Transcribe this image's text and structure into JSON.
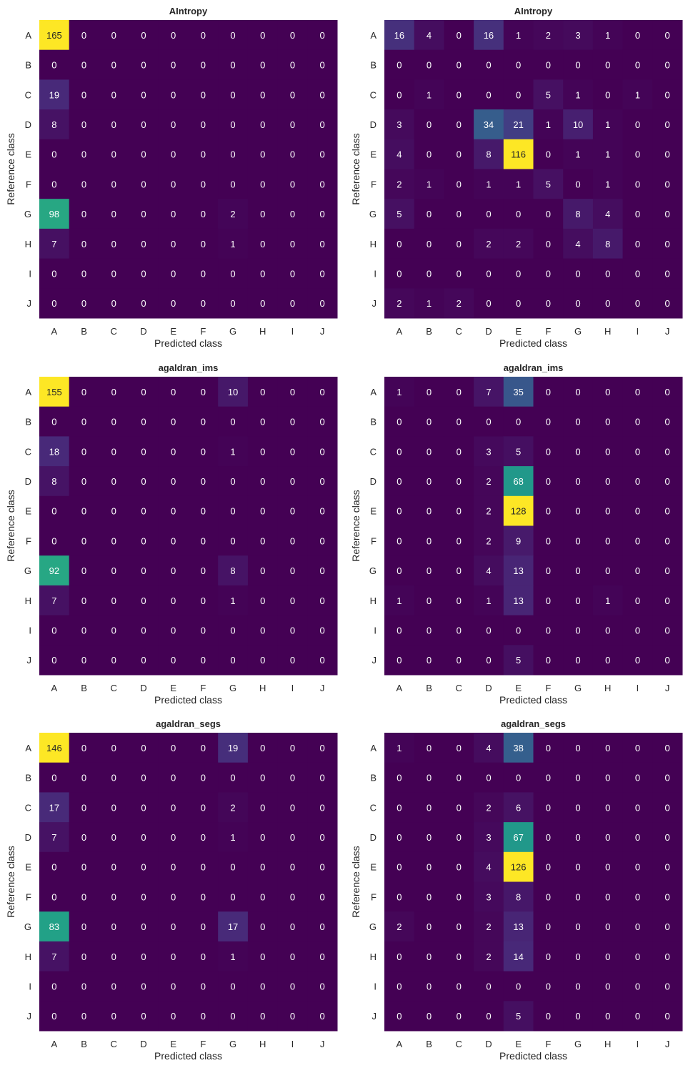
{
  "figure": {
    "classes": [
      "A",
      "B",
      "C",
      "D",
      "E",
      "F",
      "G",
      "H",
      "I",
      "J"
    ],
    "xlabel": "Predicted class",
    "ylabel": "Reference class",
    "colormap": [
      "#440154",
      "#482878",
      "#3e4989",
      "#31688e",
      "#26828e",
      "#1f9e89",
      "#35b779",
      "#6ece58",
      "#b5de2b",
      "#fde725"
    ]
  },
  "chart_data": [
    {
      "type": "heatmap",
      "title": "AIntropy",
      "rows": [
        "A",
        "B",
        "C",
        "D",
        "E",
        "F",
        "G",
        "H",
        "I",
        "J"
      ],
      "cols": [
        "A",
        "B",
        "C",
        "D",
        "E",
        "F",
        "G",
        "H",
        "I",
        "J"
      ],
      "xlabel": "Predicted class",
      "ylabel": "Reference class",
      "values": [
        [
          165,
          0,
          0,
          0,
          0,
          0,
          0,
          0,
          0,
          0
        ],
        [
          0,
          0,
          0,
          0,
          0,
          0,
          0,
          0,
          0,
          0
        ],
        [
          19,
          0,
          0,
          0,
          0,
          0,
          0,
          0,
          0,
          0
        ],
        [
          8,
          0,
          0,
          0,
          0,
          0,
          0,
          0,
          0,
          0
        ],
        [
          0,
          0,
          0,
          0,
          0,
          0,
          0,
          0,
          0,
          0
        ],
        [
          0,
          0,
          0,
          0,
          0,
          0,
          0,
          0,
          0,
          0
        ],
        [
          98,
          0,
          0,
          0,
          0,
          0,
          2,
          0,
          0,
          0
        ],
        [
          7,
          0,
          0,
          0,
          0,
          0,
          1,
          0,
          0,
          0
        ],
        [
          0,
          0,
          0,
          0,
          0,
          0,
          0,
          0,
          0,
          0
        ],
        [
          0,
          0,
          0,
          0,
          0,
          0,
          0,
          0,
          0,
          0
        ]
      ]
    },
    {
      "type": "heatmap",
      "title": "AIntropy",
      "rows": [
        "A",
        "B",
        "C",
        "D",
        "E",
        "F",
        "G",
        "H",
        "I",
        "J"
      ],
      "cols": [
        "A",
        "B",
        "C",
        "D",
        "E",
        "F",
        "G",
        "H",
        "I",
        "J"
      ],
      "xlabel": "Predicted class",
      "ylabel": "Reference class",
      "values": [
        [
          16,
          4,
          0,
          16,
          1,
          2,
          3,
          1,
          0,
          0
        ],
        [
          0,
          0,
          0,
          0,
          0,
          0,
          0,
          0,
          0,
          0
        ],
        [
          0,
          1,
          0,
          0,
          0,
          5,
          1,
          0,
          1,
          0
        ],
        [
          3,
          0,
          0,
          34,
          21,
          1,
          10,
          1,
          0,
          0
        ],
        [
          4,
          0,
          0,
          8,
          116,
          0,
          1,
          1,
          0,
          0
        ],
        [
          2,
          1,
          0,
          1,
          1,
          5,
          0,
          1,
          0,
          0
        ],
        [
          5,
          0,
          0,
          0,
          0,
          0,
          8,
          4,
          0,
          0
        ],
        [
          0,
          0,
          0,
          2,
          2,
          0,
          4,
          8,
          0,
          0
        ],
        [
          0,
          0,
          0,
          0,
          0,
          0,
          0,
          0,
          0,
          0
        ],
        [
          2,
          1,
          2,
          0,
          0,
          0,
          0,
          0,
          0,
          0
        ]
      ]
    },
    {
      "type": "heatmap",
      "title": "agaldran_ims",
      "rows": [
        "A",
        "B",
        "C",
        "D",
        "E",
        "F",
        "G",
        "H",
        "I",
        "J"
      ],
      "cols": [
        "A",
        "B",
        "C",
        "D",
        "E",
        "F",
        "G",
        "H",
        "I",
        "J"
      ],
      "xlabel": "Predicted class",
      "ylabel": "Reference class",
      "values": [
        [
          155,
          0,
          0,
          0,
          0,
          0,
          10,
          0,
          0,
          0
        ],
        [
          0,
          0,
          0,
          0,
          0,
          0,
          0,
          0,
          0,
          0
        ],
        [
          18,
          0,
          0,
          0,
          0,
          0,
          1,
          0,
          0,
          0
        ],
        [
          8,
          0,
          0,
          0,
          0,
          0,
          0,
          0,
          0,
          0
        ],
        [
          0,
          0,
          0,
          0,
          0,
          0,
          0,
          0,
          0,
          0
        ],
        [
          0,
          0,
          0,
          0,
          0,
          0,
          0,
          0,
          0,
          0
        ],
        [
          92,
          0,
          0,
          0,
          0,
          0,
          8,
          0,
          0,
          0
        ],
        [
          7,
          0,
          0,
          0,
          0,
          0,
          1,
          0,
          0,
          0
        ],
        [
          0,
          0,
          0,
          0,
          0,
          0,
          0,
          0,
          0,
          0
        ],
        [
          0,
          0,
          0,
          0,
          0,
          0,
          0,
          0,
          0,
          0
        ]
      ]
    },
    {
      "type": "heatmap",
      "title": "agaldran_ims",
      "rows": [
        "A",
        "B",
        "C",
        "D",
        "E",
        "F",
        "G",
        "H",
        "I",
        "J"
      ],
      "cols": [
        "A",
        "B",
        "C",
        "D",
        "E",
        "F",
        "G",
        "H",
        "I",
        "J"
      ],
      "xlabel": "Predicted class",
      "ylabel": "Reference class",
      "values": [
        [
          1,
          0,
          0,
          7,
          35,
          0,
          0,
          0,
          0,
          0
        ],
        [
          0,
          0,
          0,
          0,
          0,
          0,
          0,
          0,
          0,
          0
        ],
        [
          0,
          0,
          0,
          3,
          5,
          0,
          0,
          0,
          0,
          0
        ],
        [
          0,
          0,
          0,
          2,
          68,
          0,
          0,
          0,
          0,
          0
        ],
        [
          0,
          0,
          0,
          2,
          128,
          0,
          0,
          0,
          0,
          0
        ],
        [
          0,
          0,
          0,
          2,
          9,
          0,
          0,
          0,
          0,
          0
        ],
        [
          0,
          0,
          0,
          4,
          13,
          0,
          0,
          0,
          0,
          0
        ],
        [
          1,
          0,
          0,
          1,
          13,
          0,
          0,
          1,
          0,
          0
        ],
        [
          0,
          0,
          0,
          0,
          0,
          0,
          0,
          0,
          0,
          0
        ],
        [
          0,
          0,
          0,
          0,
          5,
          0,
          0,
          0,
          0,
          0
        ]
      ]
    },
    {
      "type": "heatmap",
      "title": "agaldran_segs",
      "rows": [
        "A",
        "B",
        "C",
        "D",
        "E",
        "F",
        "G",
        "H",
        "I",
        "J"
      ],
      "cols": [
        "A",
        "B",
        "C",
        "D",
        "E",
        "F",
        "G",
        "H",
        "I",
        "J"
      ],
      "xlabel": "Predicted class",
      "ylabel": "Reference class",
      "values": [
        [
          146,
          0,
          0,
          0,
          0,
          0,
          19,
          0,
          0,
          0
        ],
        [
          0,
          0,
          0,
          0,
          0,
          0,
          0,
          0,
          0,
          0
        ],
        [
          17,
          0,
          0,
          0,
          0,
          0,
          2,
          0,
          0,
          0
        ],
        [
          7,
          0,
          0,
          0,
          0,
          0,
          1,
          0,
          0,
          0
        ],
        [
          0,
          0,
          0,
          0,
          0,
          0,
          0,
          0,
          0,
          0
        ],
        [
          0,
          0,
          0,
          0,
          0,
          0,
          0,
          0,
          0,
          0
        ],
        [
          83,
          0,
          0,
          0,
          0,
          0,
          17,
          0,
          0,
          0
        ],
        [
          7,
          0,
          0,
          0,
          0,
          0,
          1,
          0,
          0,
          0
        ],
        [
          0,
          0,
          0,
          0,
          0,
          0,
          0,
          0,
          0,
          0
        ],
        [
          0,
          0,
          0,
          0,
          0,
          0,
          0,
          0,
          0,
          0
        ]
      ]
    },
    {
      "type": "heatmap",
      "title": "agaldran_segs",
      "rows": [
        "A",
        "B",
        "C",
        "D",
        "E",
        "F",
        "G",
        "H",
        "I",
        "J"
      ],
      "cols": [
        "A",
        "B",
        "C",
        "D",
        "E",
        "F",
        "G",
        "H",
        "I",
        "J"
      ],
      "xlabel": "Predicted class",
      "ylabel": "Reference class",
      "values": [
        [
          1,
          0,
          0,
          4,
          38,
          0,
          0,
          0,
          0,
          0
        ],
        [
          0,
          0,
          0,
          0,
          0,
          0,
          0,
          0,
          0,
          0
        ],
        [
          0,
          0,
          0,
          2,
          6,
          0,
          0,
          0,
          0,
          0
        ],
        [
          0,
          0,
          0,
          3,
          67,
          0,
          0,
          0,
          0,
          0
        ],
        [
          0,
          0,
          0,
          4,
          126,
          0,
          0,
          0,
          0,
          0
        ],
        [
          0,
          0,
          0,
          3,
          8,
          0,
          0,
          0,
          0,
          0
        ],
        [
          2,
          0,
          0,
          2,
          13,
          0,
          0,
          0,
          0,
          0
        ],
        [
          0,
          0,
          0,
          2,
          14,
          0,
          0,
          0,
          0,
          0
        ],
        [
          0,
          0,
          0,
          0,
          0,
          0,
          0,
          0,
          0,
          0
        ],
        [
          0,
          0,
          0,
          0,
          5,
          0,
          0,
          0,
          0,
          0
        ]
      ]
    }
  ]
}
